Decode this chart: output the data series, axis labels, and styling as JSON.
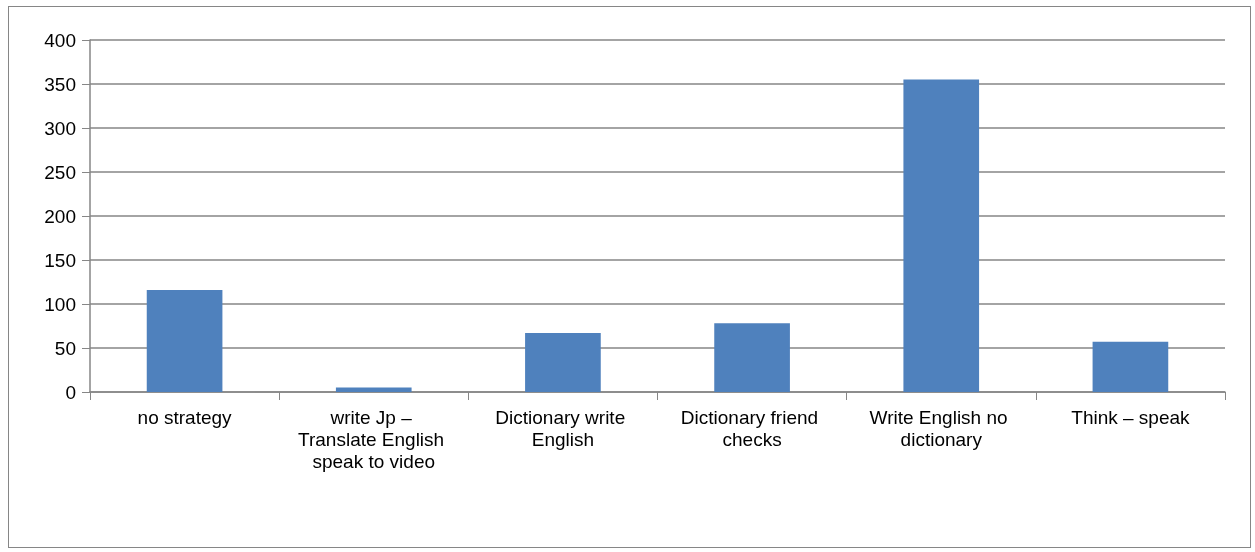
{
  "chart_data": {
    "type": "bar",
    "categories": [
      "no strategy",
      "write Jp – Translate English speak to video",
      "Dictionary write English",
      "Dictionary friend checks",
      "Write English no dictionary",
      "Think – speak"
    ],
    "values": [
      116,
      5,
      67,
      78,
      355,
      57
    ],
    "color": "#4f81bd",
    "ylim": [
      0,
      400
    ],
    "yticks": [
      0,
      50,
      100,
      150,
      200,
      250,
      300,
      350,
      400
    ],
    "grid": "y"
  }
}
